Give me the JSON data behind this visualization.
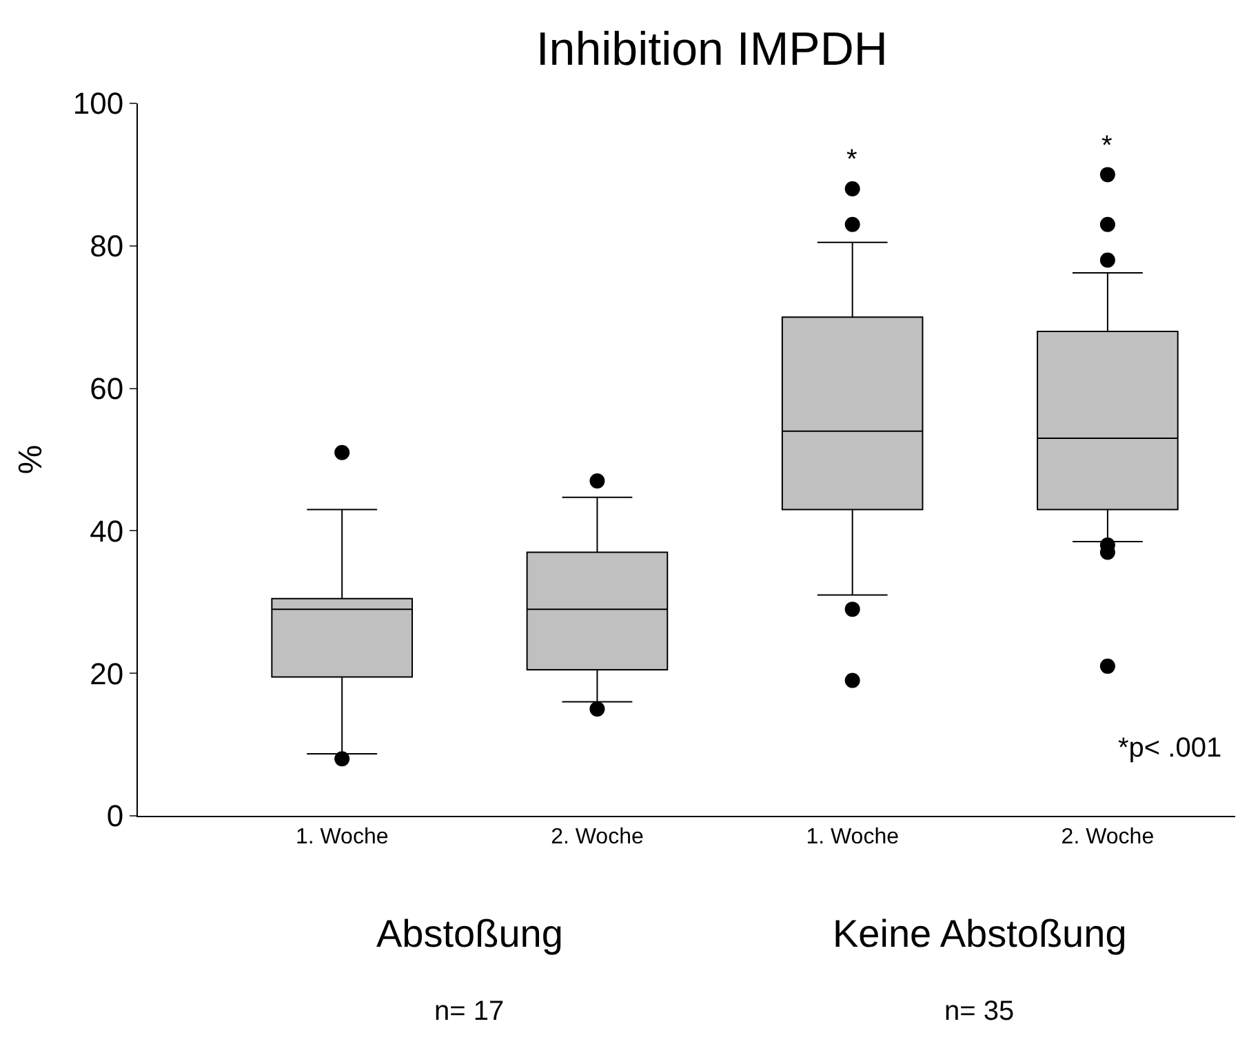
{
  "chart_data": {
    "type": "box",
    "title": "Inhibition IMPDH",
    "ylabel": "%",
    "categories": [
      "1. Woche",
      "2. Woche",
      "1. Woche",
      "2. Woche"
    ],
    "boxes": [
      {
        "low": 8.7,
        "q1": 19.5,
        "median": 29,
        "q3": 30.5,
        "high": 43,
        "outliers": [
          51,
          8
        ]
      },
      {
        "low": 16,
        "q1": 20.5,
        "median": 29,
        "q3": 37,
        "high": 44.7,
        "outliers": [
          47,
          15
        ]
      },
      {
        "low": 31,
        "q1": 43,
        "median": 54,
        "q3": 70,
        "high": 80.5,
        "outliers": [
          88,
          83,
          29,
          19
        ]
      },
      {
        "low": 38.5,
        "q1": 43,
        "median": 53,
        "q3": 68,
        "high": 76.2,
        "outliers": [
          90,
          83,
          78,
          38,
          37,
          21
        ]
      }
    ],
    "color": "#c0c0c0",
    "ylim": [
      0,
      100
    ],
    "yticks": [
      0,
      20,
      40,
      60,
      80,
      100
    ],
    "annotations": [
      "*",
      "*",
      "*p< .001",
      "Abstoßung",
      "Keine Abstoßung",
      "n= 17",
      "n= 35"
    ]
  }
}
